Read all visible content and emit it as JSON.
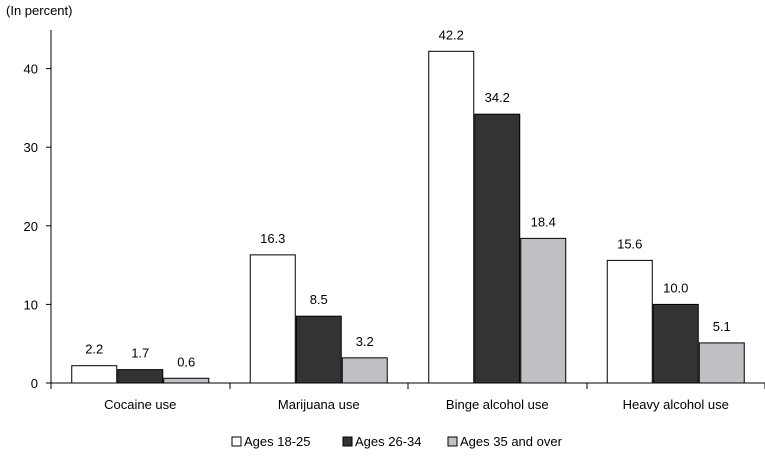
{
  "chart_data": {
    "type": "bar",
    "unit_label": "(In percent)",
    "categories": [
      "Cocaine use",
      "Marijuana use",
      "Binge alcohol use",
      "Heavy alcohol use"
    ],
    "series": [
      {
        "name": "Ages 18-25",
        "color": "#ffffff",
        "values": [
          2.2,
          16.3,
          42.2,
          15.6
        ],
        "labels": [
          "2.2",
          "16.3",
          "42.2",
          "15.6"
        ]
      },
      {
        "name": "Ages 26-34",
        "color": "#333333",
        "values": [
          1.7,
          8.5,
          34.2,
          10.0
        ],
        "labels": [
          "1.7",
          "8.5",
          "34.2",
          "10.0"
        ]
      },
      {
        "name": "Ages 35 and over",
        "color": "#c0bfc4",
        "values": [
          0.6,
          3.2,
          18.4,
          5.1
        ],
        "labels": [
          "0.6",
          "3.2",
          "18.4",
          "5.1"
        ]
      }
    ],
    "yticks": [
      0,
      10,
      20,
      30,
      40
    ],
    "ylim": [
      0,
      45
    ],
    "xlabel": "",
    "ylabel": "",
    "legend_position": "bottom-center"
  }
}
